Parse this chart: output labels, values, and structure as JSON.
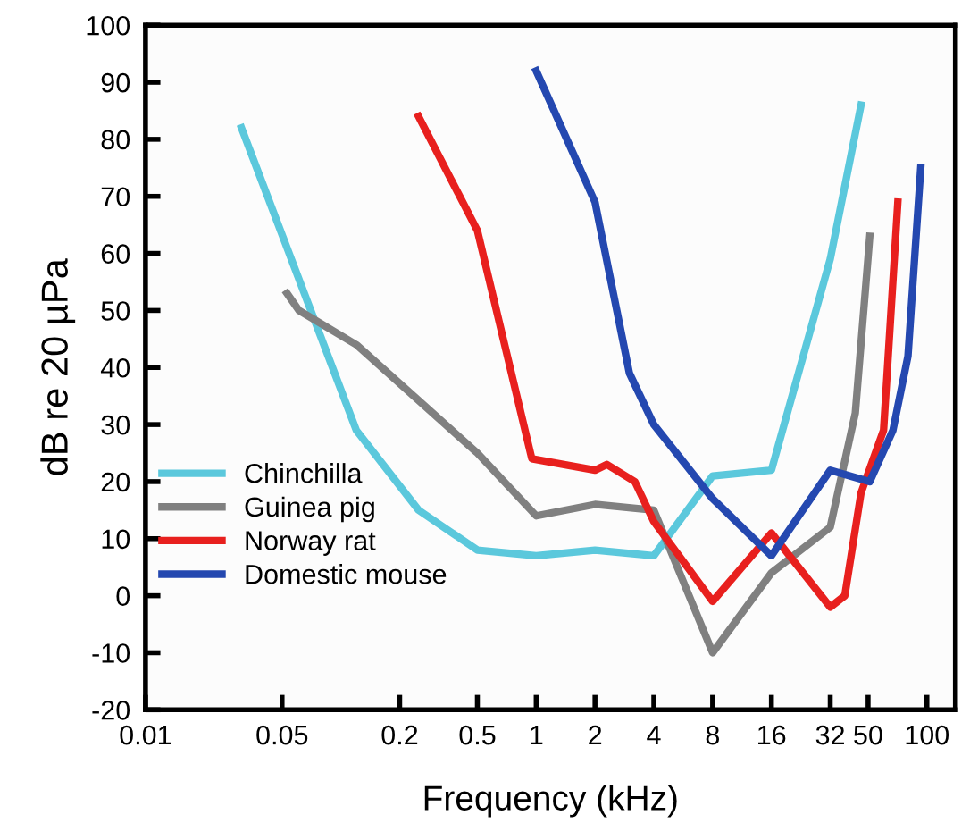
{
  "chart_data": {
    "type": "line",
    "xlabel": "Frequency (kHz)",
    "ylabel": "dB re 20 µPa",
    "log": "x",
    "grid": false,
    "legend": "bottom left",
    "marker": "none",
    "line_style": "solid",
    "xlim": [
      0.01,
      140
    ],
    "xticks": [
      0.01,
      0.05,
      0.2,
      0.5,
      1,
      2,
      4,
      8,
      16,
      32,
      50,
      100
    ],
    "ylim": [
      -20,
      100
    ],
    "yticks": [
      -20,
      -10,
      0,
      10,
      20,
      30,
      40,
      50,
      60,
      70,
      80,
      90,
      100
    ],
    "series": [
      {
        "name": "Chinchilla",
        "color": "#5bc8dc",
        "x": [
          0.031,
          0.12,
          0.25,
          0.5,
          1,
          2,
          4,
          8,
          16,
          32,
          46
        ],
        "values": [
          82,
          29,
          15,
          8,
          7,
          8,
          7,
          21,
          22,
          59,
          86
        ]
      },
      {
        "name": "Guinea pig",
        "color": "#808080",
        "x": [
          0.053,
          0.061,
          0.12,
          0.5,
          1,
          2,
          4,
          8,
          16,
          32,
          43,
          51
        ],
        "values": [
          53,
          50,
          44,
          25,
          14,
          16,
          15,
          -10,
          4,
          12,
          32,
          63
        ]
      },
      {
        "name": "Norway rat",
        "color": "#e8201e",
        "x": [
          0.25,
          0.5,
          0.95,
          2,
          2.3,
          3.2,
          4,
          8,
          16,
          32,
          38,
          46,
          60,
          71
        ],
        "values": [
          84,
          64,
          24,
          22,
          23,
          20,
          13,
          -1,
          11,
          -2,
          0,
          18,
          29,
          69
        ]
      },
      {
        "name": "Domestic mouse",
        "color": "#2448b0",
        "x": [
          1,
          2,
          3,
          4,
          8,
          16,
          32,
          51,
          67,
          80,
          93
        ],
        "values": [
          92,
          69,
          39,
          30,
          17,
          7,
          22,
          20,
          29,
          42,
          75
        ]
      }
    ]
  }
}
